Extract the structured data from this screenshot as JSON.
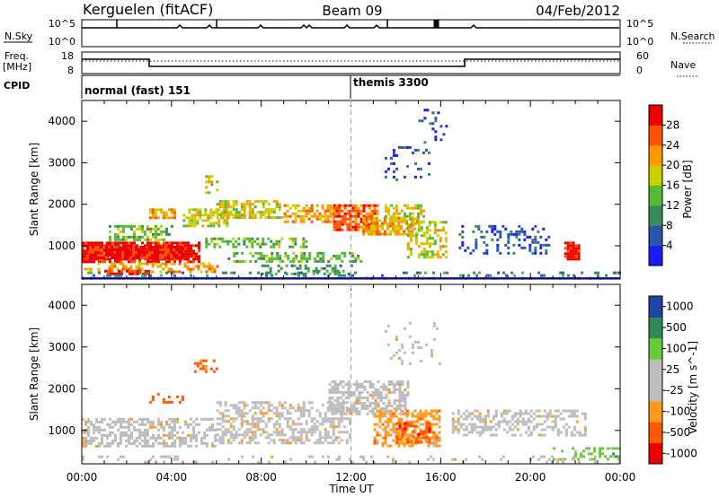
{
  "header": {
    "station": "Kerguelen (fitACF)",
    "beam": "Beam 09",
    "date": "04/Feb/2012"
  },
  "labels": {
    "nsky": "N.Sky",
    "nsearch": "N.Search",
    "freq": "Freq.",
    "freq_unit": "[MHz]",
    "nave": "Nave",
    "cpid": "CPID",
    "nsky_tick_hi": "10^5",
    "nsky_tick_lo": "10^0",
    "nsearch_tick_hi": "10^5",
    "nsearch_tick_lo": "10^0",
    "freq_tick_hi": "18",
    "freq_tick_lo": "8",
    "nave_tick_hi": "60",
    "nave_tick_lo": "0"
  },
  "cpid_segments": [
    {
      "label": "normal (fast) 151",
      "start_hour": 0
    },
    {
      "label": "themis 3300",
      "start_hour": 12
    }
  ],
  "colors": {
    "power": [
      "#1a1aff",
      "#2a55b0",
      "#3a8a5a",
      "#55bb33",
      "#c8d000",
      "#ff9900",
      "#ff5500",
      "#ee0000"
    ],
    "velocity": [
      "#ee0000",
      "#ff5a00",
      "#ff9a1a",
      "#bdbdbd",
      "#bdbdbd",
      "#66cc33",
      "#2e8b57",
      "#2244aa"
    ],
    "gray_scatter": "#bdbdbd"
  },
  "chart_data": [
    {
      "type": "heatmap",
      "panel": "power",
      "ylabel": "Slant Range [km]",
      "ylim": [
        200,
        4500
      ],
      "yticks": [
        "1000",
        "2000",
        "3000",
        "4000"
      ],
      "xlim": [
        0,
        24
      ],
      "colorbar_label": "Power [dB]",
      "colorbar_ticks": [
        "4",
        "8",
        "12",
        "16",
        "20",
        "24",
        "28"
      ]
    },
    {
      "type": "heatmap",
      "panel": "velocity",
      "ylabel": "Slant Range [km]",
      "ylim": [
        200,
        4500
      ],
      "yticks": [
        "1000",
        "2000",
        "3000",
        "4000"
      ],
      "xlim": [
        0,
        24
      ],
      "xticks": [
        "00:00",
        "04:00",
        "08:00",
        "12:00",
        "16:00",
        "20:00",
        "00:00"
      ],
      "xlabel": "Time UT",
      "colorbar_label": "Velocity [m s^-1]",
      "colorbar_ticks": [
        "1000",
        "500",
        "100",
        "25",
        "-25",
        "-100",
        "-500",
        "-1000"
      ]
    }
  ]
}
